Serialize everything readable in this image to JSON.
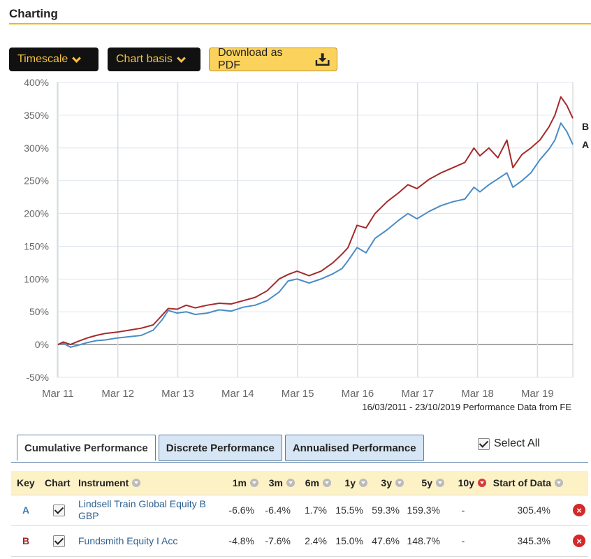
{
  "page": {
    "title": "Charting"
  },
  "toolbar": {
    "timescale_label": "Timescale",
    "chart_basis_label": "Chart basis",
    "download_label": "Download as PDF"
  },
  "chart_caption": "16/03/2011 - 23/10/2019 Performance Data from FE",
  "chart_data": {
    "type": "line",
    "title": "",
    "xlabel": "",
    "ylabel": "",
    "x_ticks": [
      "Mar 11",
      "Mar 12",
      "Mar 13",
      "Mar 14",
      "Mar 15",
      "Mar 16",
      "Mar 17",
      "Mar 18",
      "Mar 19"
    ],
    "y_ticks": [
      "400%",
      "350%",
      "300%",
      "250%",
      "200%",
      "150%",
      "100%",
      "50%",
      "0%",
      "-50%"
    ],
    "ylim": [
      -50,
      400
    ],
    "xlim": [
      2011.2,
      2019.8
    ],
    "grid": true,
    "series": [
      {
        "name": "A",
        "color": "#4a8cc6",
        "x": [
          2011.21,
          2011.3,
          2011.42,
          2011.55,
          2011.7,
          2011.85,
          2012.0,
          2012.2,
          2012.4,
          2012.6,
          2012.8,
          2012.95,
          2013.05,
          2013.2,
          2013.35,
          2013.5,
          2013.7,
          2013.9,
          2014.1,
          2014.3,
          2014.5,
          2014.7,
          2014.9,
          2015.05,
          2015.2,
          2015.4,
          2015.6,
          2015.8,
          2015.95,
          2016.05,
          2016.2,
          2016.35,
          2016.5,
          2016.7,
          2016.9,
          2017.05,
          2017.2,
          2017.4,
          2017.6,
          2017.8,
          2018.0,
          2018.15,
          2018.25,
          2018.4,
          2018.55,
          2018.7,
          2018.8,
          2018.95,
          2019.1,
          2019.25,
          2019.4,
          2019.5,
          2019.6,
          2019.7,
          2019.8
        ],
        "y": [
          0,
          2,
          -4,
          -1,
          3,
          6,
          7,
          10,
          12,
          14,
          22,
          38,
          52,
          48,
          50,
          46,
          48,
          53,
          51,
          57,
          60,
          67,
          80,
          97,
          100,
          94,
          100,
          108,
          116,
          128,
          148,
          140,
          162,
          175,
          190,
          200,
          192,
          203,
          212,
          218,
          222,
          240,
          233,
          244,
          253,
          262,
          240,
          250,
          262,
          282,
          298,
          312,
          338,
          325,
          305.4
        ]
      },
      {
        "name": "B",
        "color": "#a52a2a",
        "x": [
          2011.21,
          2011.3,
          2011.42,
          2011.55,
          2011.7,
          2011.85,
          2012.0,
          2012.2,
          2012.4,
          2012.6,
          2012.8,
          2012.95,
          2013.05,
          2013.2,
          2013.35,
          2013.5,
          2013.7,
          2013.9,
          2014.1,
          2014.3,
          2014.5,
          2014.7,
          2014.9,
          2015.05,
          2015.2,
          2015.4,
          2015.6,
          2015.8,
          2015.95,
          2016.05,
          2016.2,
          2016.35,
          2016.5,
          2016.7,
          2016.9,
          2017.05,
          2017.2,
          2017.4,
          2017.6,
          2017.8,
          2018.0,
          2018.15,
          2018.25,
          2018.4,
          2018.55,
          2018.7,
          2018.8,
          2018.95,
          2019.1,
          2019.25,
          2019.4,
          2019.5,
          2019.6,
          2019.7,
          2019.8
        ],
        "y": [
          0,
          4,
          0,
          5,
          10,
          14,
          17,
          19,
          22,
          25,
          30,
          45,
          55,
          54,
          60,
          56,
          60,
          63,
          62,
          67,
          72,
          82,
          100,
          107,
          112,
          105,
          112,
          125,
          138,
          148,
          182,
          178,
          200,
          218,
          232,
          244,
          238,
          252,
          262,
          270,
          278,
          300,
          288,
          300,
          285,
          312,
          270,
          290,
          300,
          312,
          332,
          350,
          378,
          365,
          345.3
        ]
      }
    ]
  },
  "series_end_labels": [
    "B",
    "A"
  ],
  "tabs": [
    {
      "label": "Cumulative Performance",
      "active": true
    },
    {
      "label": "Discrete Performance",
      "active": false
    },
    {
      "label": "Annualised Performance",
      "active": false
    }
  ],
  "select_all_label": "Select All",
  "table": {
    "headers": {
      "key": "Key",
      "chart": "Chart",
      "instrument": "Instrument",
      "m1": "1m",
      "m3": "3m",
      "m6": "6m",
      "y1": "1y",
      "y3": "3y",
      "y5": "5y",
      "y10": "10y",
      "start": "Start of Data"
    },
    "rows": [
      {
        "key": "A",
        "instrument": "Lindsell Train Global Equity B GBP",
        "m1": "-6.6%",
        "m3": "-6.4%",
        "m6": "1.7%",
        "y1": "15.5%",
        "y3": "59.3%",
        "y5": "159.3%",
        "y10": "-",
        "start": "305.4%",
        "remove_icon": "×"
      },
      {
        "key": "B",
        "instrument": "Fundsmith Equity I Acc",
        "m1": "-4.8%",
        "m3": "-7.6%",
        "m6": "2.4%",
        "y1": "15.0%",
        "y3": "47.6%",
        "y5": "148.7%",
        "y10": "-",
        "start": "345.3%",
        "remove_icon": "×"
      }
    ]
  },
  "icons": {
    "chevron": "chevron-down-icon",
    "download": "download-icon",
    "remove": "remove-icon",
    "sort": "sort-icon"
  },
  "colors": {
    "accent": "#f2b600",
    "series_a": "#4a8cc6",
    "series_b": "#a52a2a",
    "tab_inactive_bg": "#d7e6f4"
  }
}
